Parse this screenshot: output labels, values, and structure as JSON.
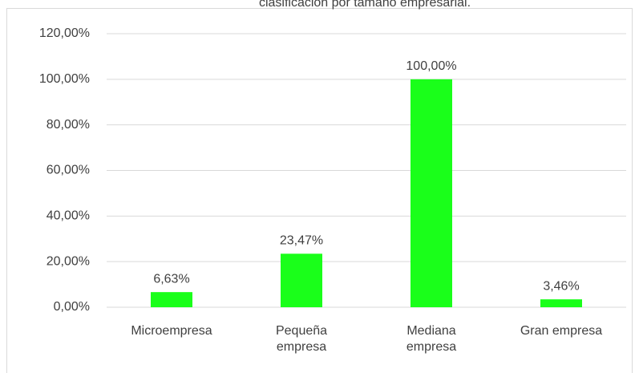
{
  "chart_data": {
    "type": "bar",
    "title": "clasificación por tamaño empresarial.",
    "categories": [
      "Microempresa",
      "Pequeña empresa",
      "Mediana empresa",
      "Gran empresa"
    ],
    "values": [
      6.63,
      23.47,
      100,
      3.46
    ],
    "value_labels": [
      "6,63%",
      "23,47%",
      "100,00%",
      "3,46%"
    ],
    "color": "#1aff1a",
    "ylim": [
      0,
      120
    ],
    "yticks": [
      {
        "value": 0,
        "label": "0,00%"
      },
      {
        "value": 20,
        "label": "20,00%"
      },
      {
        "value": 40,
        "label": "40,00%"
      },
      {
        "value": 60,
        "label": "60,00%"
      },
      {
        "value": 80,
        "label": "80,00%"
      },
      {
        "value": 100,
        "label": "100,00%"
      },
      {
        "value": 120,
        "label": "120,00%"
      }
    ],
    "grid": true
  }
}
